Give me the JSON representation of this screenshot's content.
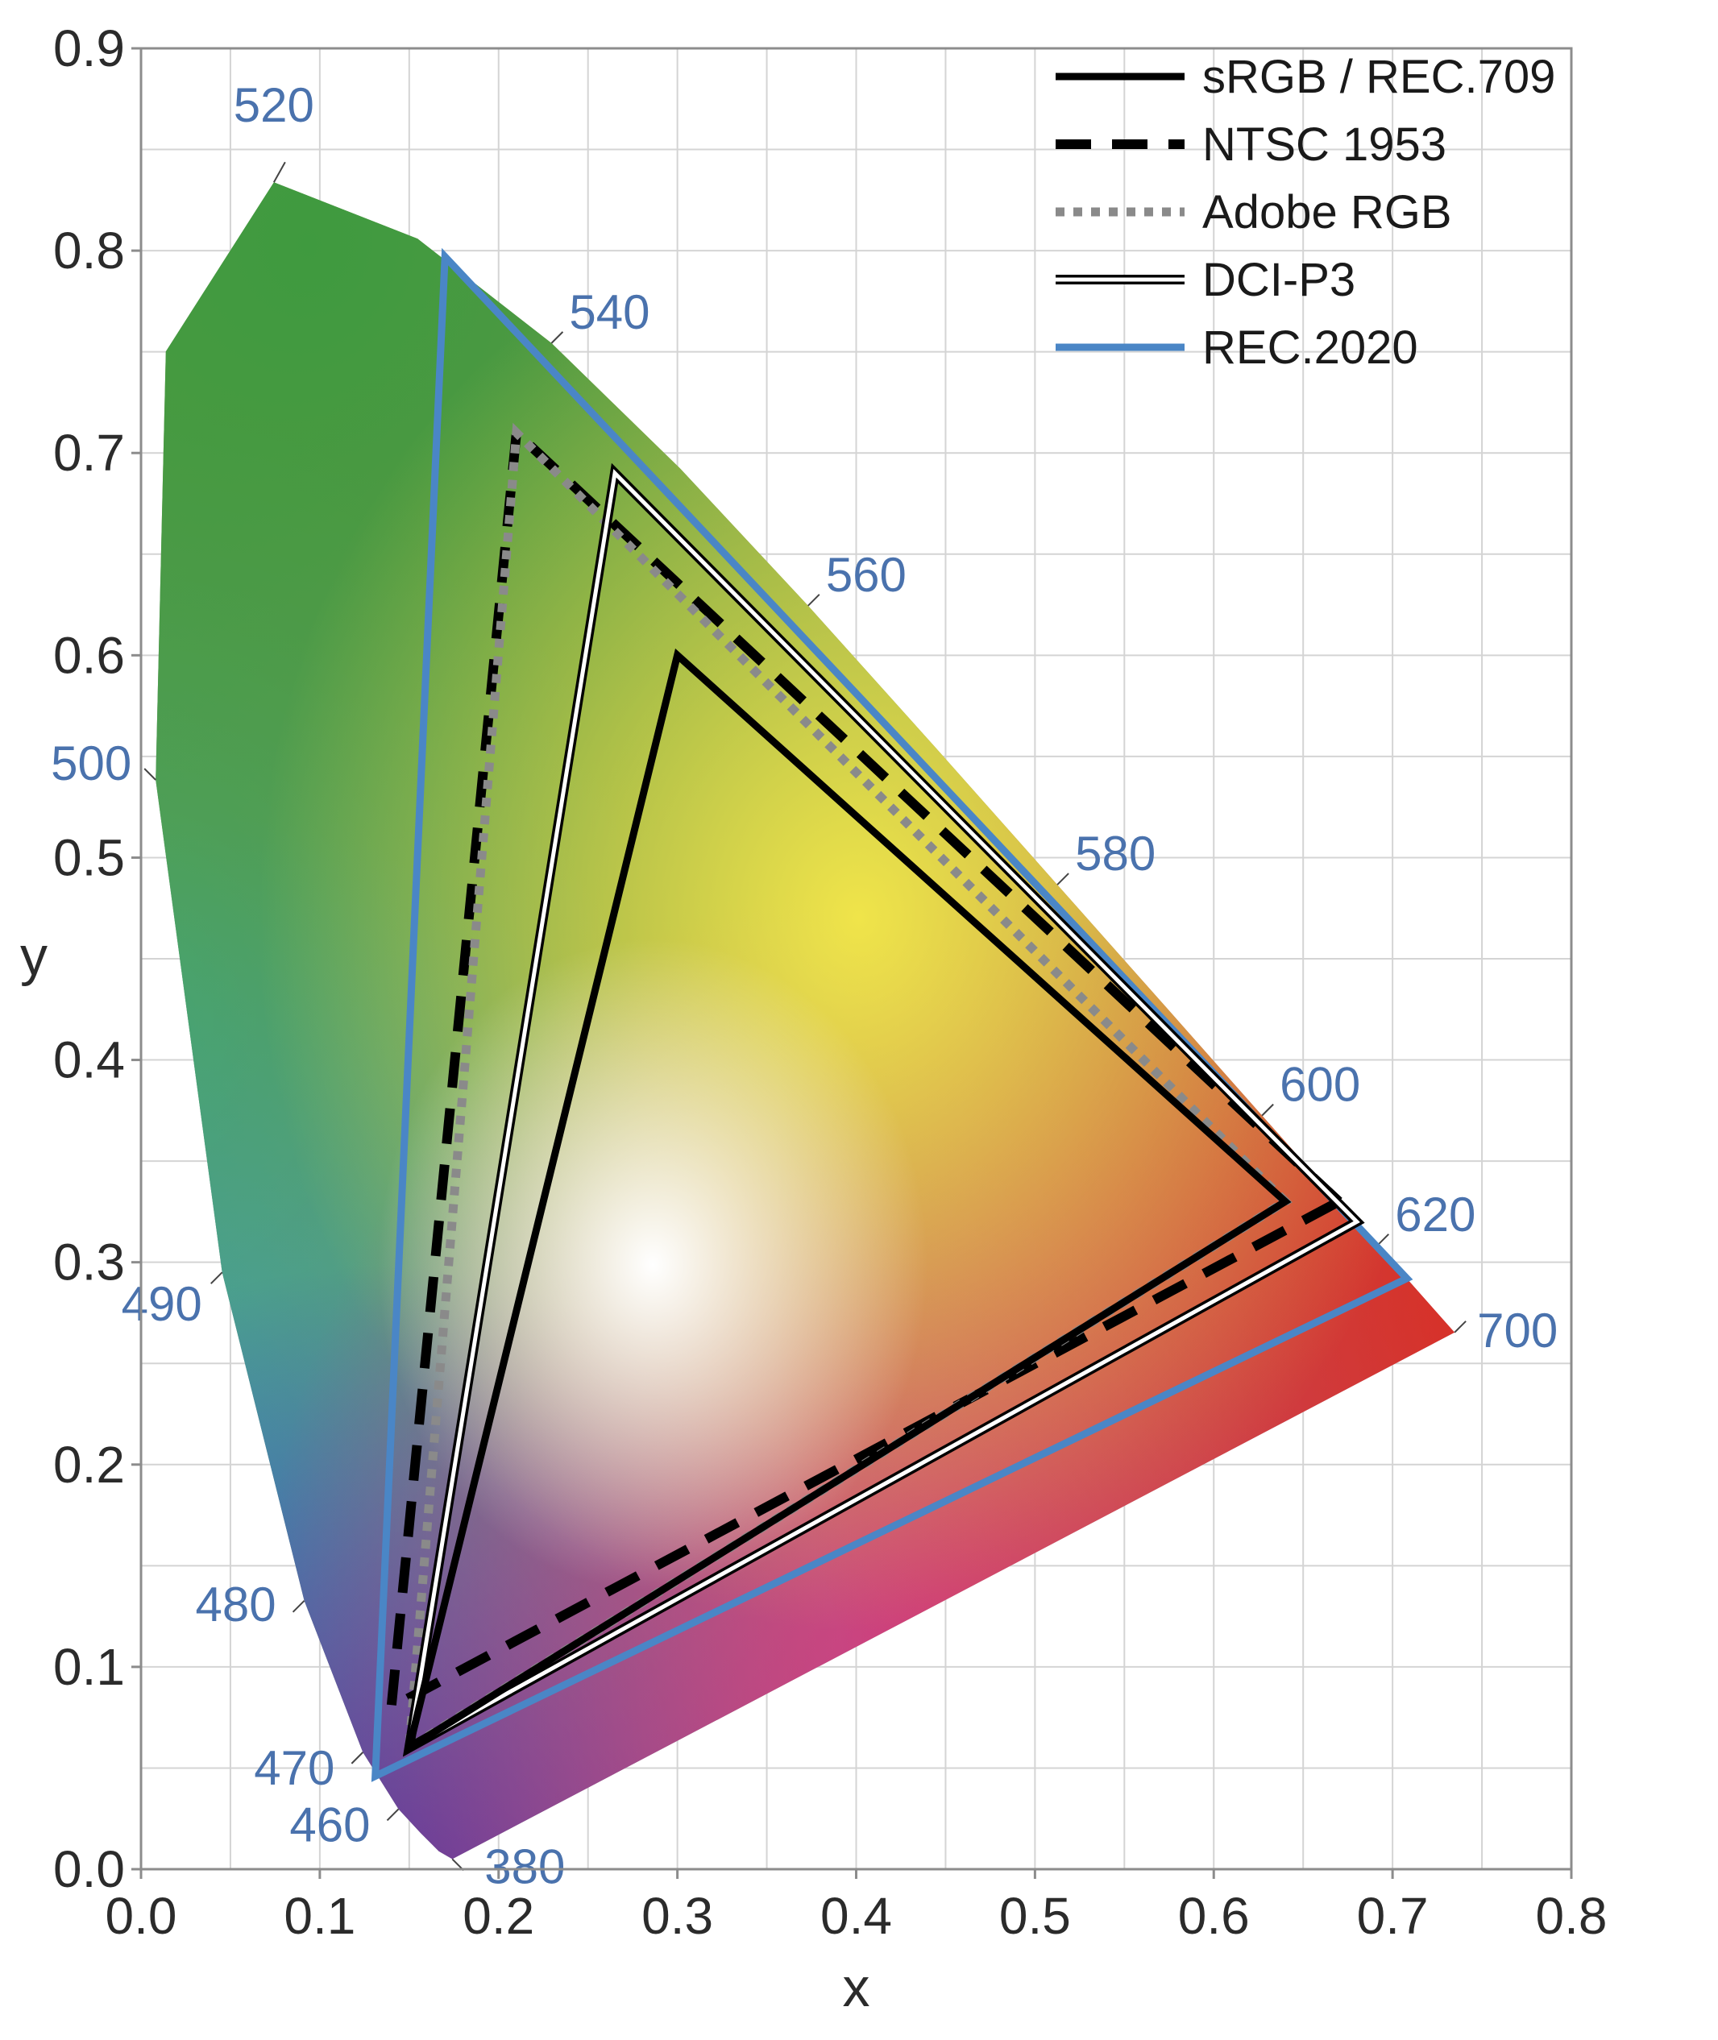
{
  "chart_data": {
    "type": "scatter",
    "title": "",
    "xlabel": "x",
    "ylabel": "y",
    "xlim": [
      0.0,
      0.8
    ],
    "ylim": [
      0.0,
      0.9
    ],
    "grid": true,
    "legend_position": "top-right",
    "x_ticks": [
      "0.0",
      "0.1",
      "0.2",
      "0.3",
      "0.4",
      "0.5",
      "0.6",
      "0.7",
      "0.8"
    ],
    "y_ticks": [
      "0.0",
      "0.1",
      "0.2",
      "0.3",
      "0.4",
      "0.5",
      "0.6",
      "0.7",
      "0.8",
      "0.9"
    ],
    "spectral_locus": [
      [
        0.1741,
        0.005
      ],
      [
        0.1666,
        0.0089
      ],
      [
        0.1566,
        0.0177
      ],
      [
        0.144,
        0.0297
      ],
      [
        0.1241,
        0.0578
      ],
      [
        0.0913,
        0.1327
      ],
      [
        0.0454,
        0.295
      ],
      [
        0.0082,
        0.5384
      ],
      [
        0.0139,
        0.7502
      ],
      [
        0.0743,
        0.8338
      ],
      [
        0.1547,
        0.8059
      ],
      [
        0.2296,
        0.7543
      ],
      [
        0.3016,
        0.6923
      ],
      [
        0.3731,
        0.6245
      ],
      [
        0.4441,
        0.5547
      ],
      [
        0.5125,
        0.4866
      ],
      [
        0.5752,
        0.4242
      ],
      [
        0.627,
        0.3725
      ],
      [
        0.6658,
        0.334
      ],
      [
        0.6915,
        0.3083
      ],
      [
        0.7079,
        0.292
      ],
      [
        0.7347,
        0.2653
      ]
    ],
    "wavelength_labels": [
      {
        "label": "380",
        "x": 0.1741,
        "y": 0.005
      },
      {
        "label": "460",
        "x": 0.144,
        "y": 0.0297
      },
      {
        "label": "470",
        "x": 0.1241,
        "y": 0.0578
      },
      {
        "label": "480",
        "x": 0.0913,
        "y": 0.1327
      },
      {
        "label": "490",
        "x": 0.0454,
        "y": 0.295
      },
      {
        "label": "500",
        "x": 0.0082,
        "y": 0.5384
      },
      {
        "label": "520",
        "x": 0.0743,
        "y": 0.8338
      },
      {
        "label": "540",
        "x": 0.2296,
        "y": 0.7543
      },
      {
        "label": "560",
        "x": 0.3731,
        "y": 0.6245
      },
      {
        "label": "580",
        "x": 0.5125,
        "y": 0.4866
      },
      {
        "label": "600",
        "x": 0.627,
        "y": 0.3725
      },
      {
        "label": "620",
        "x": 0.6915,
        "y": 0.3083
      },
      {
        "label": "700",
        "x": 0.7347,
        "y": 0.2653
      }
    ],
    "series": [
      {
        "name": "sRGB / REC.709",
        "style": "solid",
        "color": "#000000",
        "points": [
          [
            0.64,
            0.33
          ],
          [
            0.3,
            0.6
          ],
          [
            0.15,
            0.06
          ]
        ]
      },
      {
        "name": "NTSC 1953",
        "style": "dashed",
        "color": "#000000",
        "points": [
          [
            0.67,
            0.33
          ],
          [
            0.21,
            0.71
          ],
          [
            0.14,
            0.08
          ]
        ]
      },
      {
        "name": "Adobe RGB",
        "style": "dotted",
        "color": "#8a8a8a",
        "points": [
          [
            0.64,
            0.33
          ],
          [
            0.21,
            0.71
          ],
          [
            0.15,
            0.06
          ]
        ]
      },
      {
        "name": "DCI-P3",
        "style": "double",
        "color": "#000000",
        "points": [
          [
            0.68,
            0.32
          ],
          [
            0.265,
            0.69
          ],
          [
            0.15,
            0.06
          ]
        ]
      },
      {
        "name": "REC.2020",
        "style": "solid",
        "color": "#4a86c6",
        "points": [
          [
            0.708,
            0.292
          ],
          [
            0.17,
            0.797
          ],
          [
            0.131,
            0.046
          ]
        ]
      }
    ]
  }
}
